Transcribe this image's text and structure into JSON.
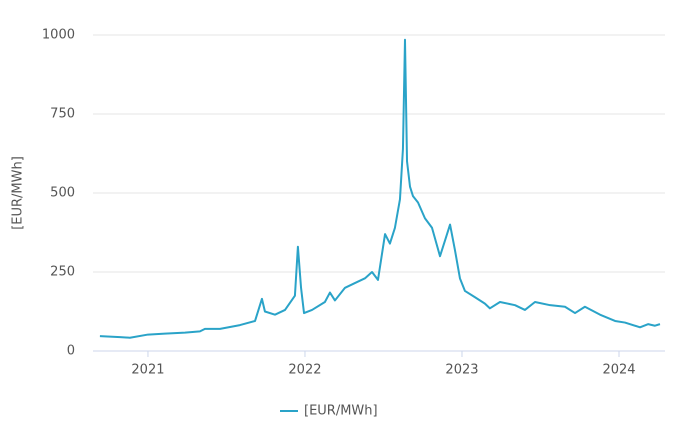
{
  "chart_data": {
    "type": "line",
    "y_label": "[EUR/MWh]",
    "x": [
      2020.694,
      2020.822,
      2020.885,
      2021.0,
      2021.108,
      2021.236,
      2021.331,
      2021.363,
      2021.459,
      2021.586,
      2021.682,
      2021.726,
      2021.745,
      2021.809,
      2021.873,
      2021.936,
      2021.955,
      2021.975,
      2021.994,
      2022.045,
      2022.127,
      2022.159,
      2022.191,
      2022.255,
      2022.318,
      2022.382,
      2022.427,
      2022.465,
      2022.51,
      2022.541,
      2022.573,
      2022.605,
      2022.624,
      2022.637,
      2022.65,
      2022.669,
      2022.688,
      2022.72,
      2022.764,
      2022.809,
      2022.86,
      2022.892,
      2022.924,
      2022.955,
      2022.987,
      2023.019,
      2023.083,
      2023.146,
      2023.178,
      2023.242,
      2023.338,
      2023.401,
      2023.465,
      2023.561,
      2023.656,
      2023.72,
      2023.783,
      2023.879,
      2023.975,
      2024.038,
      2024.134,
      2024.185,
      2024.229,
      2024.261
    ],
    "series": [
      {
        "name": "[EUR/MWh]",
        "color": "#2aa3c8",
        "values": [
          47,
          44,
          42,
          52,
          55,
          58,
          62,
          70,
          70,
          82,
          95,
          165,
          125,
          115,
          130,
          175,
          330,
          200,
          120,
          130,
          155,
          185,
          160,
          200,
          215,
          230,
          250,
          225,
          370,
          340,
          390,
          480,
          640,
          985,
          600,
          520,
          490,
          470,
          420,
          390,
          300,
          350,
          400,
          320,
          230,
          190,
          170,
          150,
          135,
          155,
          145,
          130,
          155,
          145,
          140,
          120,
          140,
          115,
          95,
          90,
          75,
          85,
          80,
          85
        ]
      }
    ],
    "xlim": [
      2020.65,
      2024.293
    ],
    "xticks": [
      2021,
      2022,
      2023,
      2024
    ],
    "ylim": [
      0,
      1000
    ],
    "yticks": [
      0,
      250,
      500,
      750,
      1000
    ],
    "grid": true
  }
}
